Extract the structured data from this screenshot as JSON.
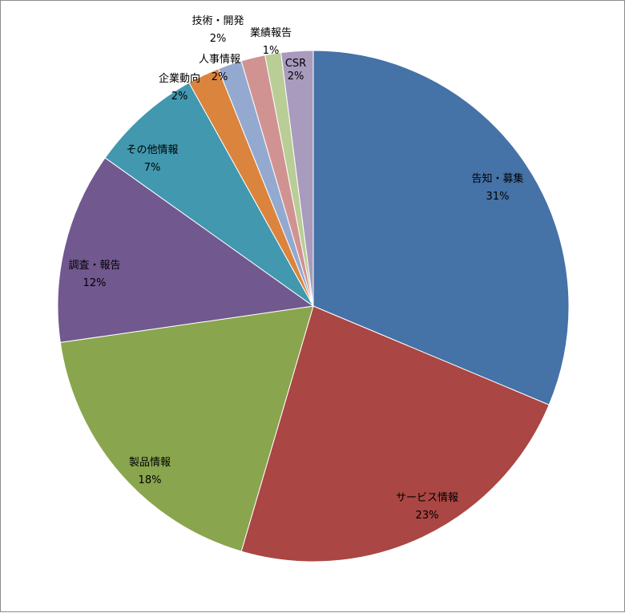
{
  "chart_data": {
    "type": "pie",
    "title": "",
    "start_angle_deg": 0,
    "direction": "clockwise",
    "legend": "none",
    "slices": [
      {
        "label": "告知・募集",
        "value": 31,
        "value_label": "31%",
        "color": "#4572a7"
      },
      {
        "label": "サービス情報",
        "value": 23,
        "value_label": "23%",
        "color": "#aa4643"
      },
      {
        "label": "製品情報",
        "value": 18,
        "value_label": "18%",
        "color": "#89a54e"
      },
      {
        "label": "調査・報告",
        "value": 12,
        "value_label": "12%",
        "color": "#71588f"
      },
      {
        "label": "その他情報",
        "value": 7,
        "value_label": "7%",
        "color": "#4198af"
      },
      {
        "label": "企業動向",
        "value": 2,
        "value_label": "2%",
        "color": "#db843d"
      },
      {
        "label": "人事情報",
        "value": 1.5,
        "value_label": "2%",
        "color": "#93a9cf"
      },
      {
        "label": "技術・開発",
        "value": 1.5,
        "value_label": "2%",
        "color": "#d19392"
      },
      {
        "label": "業績報告",
        "value": 1,
        "value_label": "1%",
        "color": "#b9cd96"
      },
      {
        "label": "CSR",
        "value": 2,
        "value_label": "2%",
        "color": "#a99bbd"
      }
    ]
  }
}
